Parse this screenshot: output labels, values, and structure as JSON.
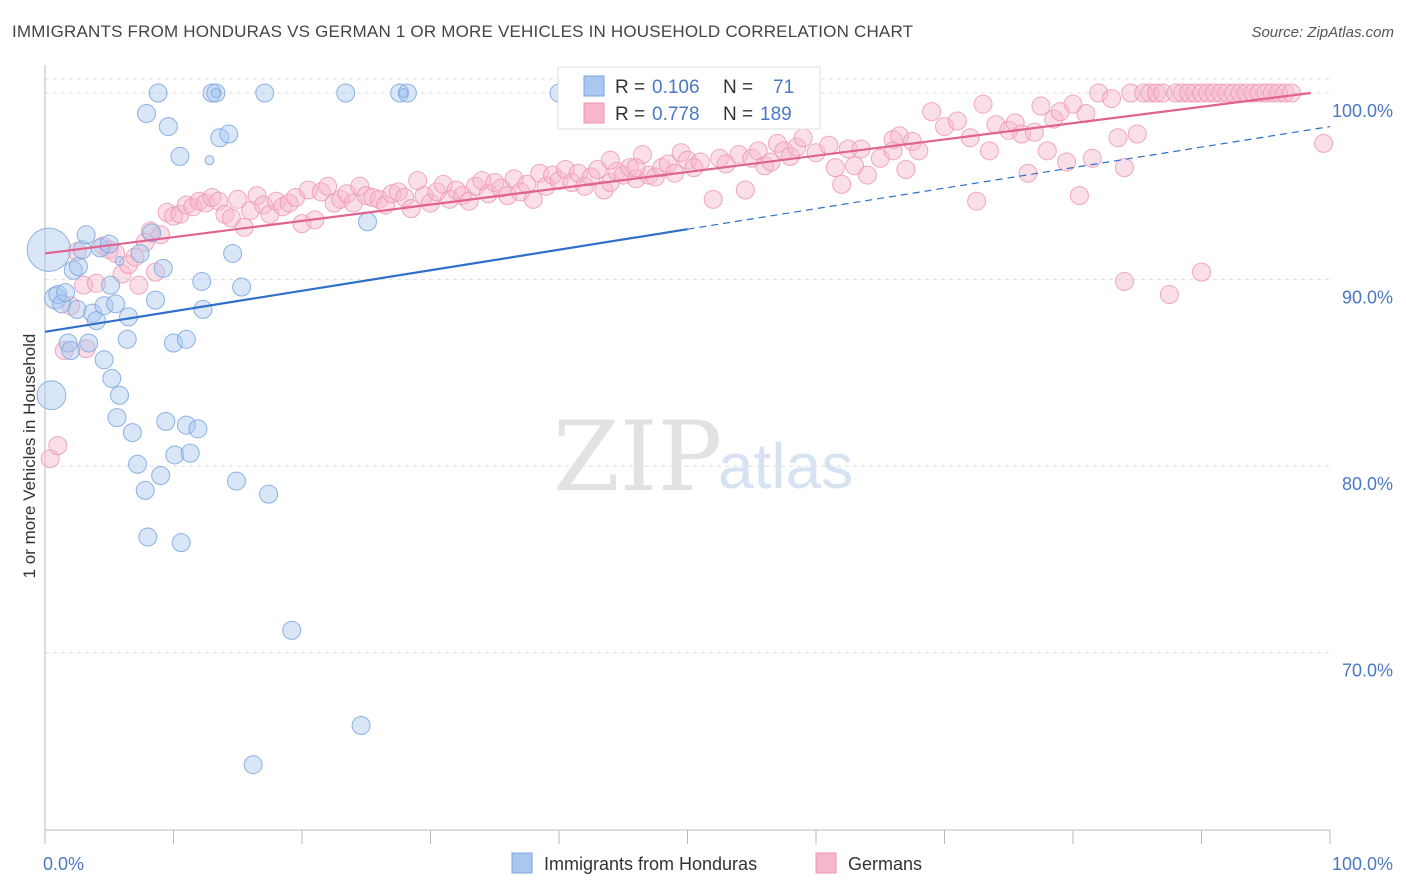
{
  "title": "IMMIGRANTS FROM HONDURAS VS GERMAN 1 OR MORE VEHICLES IN HOUSEHOLD CORRELATION CHART",
  "source": "Source: ZipAtlas.com",
  "watermark": {
    "zip": "ZIP",
    "atlas": "atlas"
  },
  "colors": {
    "blue_fill": "#a9c8f0",
    "blue_stroke": "#7aa6de",
    "blue_line": "#2f6fc9",
    "pink_fill": "#f6b7cb",
    "pink_stroke": "#ec94b2",
    "pink_line": "#e0628e",
    "grid": "#dddddd",
    "axis": "#bbbbbb",
    "tick_text": "#4a78c2"
  },
  "legend": {
    "rows": [
      {
        "r_label": "R = ",
        "r_value": "0.106",
        "n_label": "N = ",
        "n_value": "71"
      },
      {
        "r_label": "R = ",
        "r_value": "0.778",
        "n_label": "N = ",
        "n_value": "189"
      }
    ]
  },
  "chart_data": {
    "type": "scatter",
    "title": "IMMIGRANTS FROM HONDURAS VS GERMAN 1 OR MORE VEHICLES IN HOUSEHOLD CORRELATION CHART",
    "xlabel": "",
    "ylabel": "1 or more Vehicles in Household",
    "xlim": [
      0,
      100
    ],
    "ylim": [
      60.5,
      101.5
    ],
    "x_tick_labels": [
      "0.0%",
      "100.0%"
    ],
    "y_ticks": [
      {
        "value": 100,
        "label": "100.0%"
      },
      {
        "value": 90,
        "label": "90.0%"
      },
      {
        "value": 80,
        "label": "80.0%"
      },
      {
        "value": 70,
        "label": "70.0%"
      }
    ],
    "grid": true,
    "legend_placement": "top-center",
    "series": [
      {
        "name": "Immigrants from Honduras",
        "color": "#a9c8f0",
        "trend": {
          "x": [
            0,
            50
          ],
          "y": [
            87.2,
            92.7
          ],
          "extended_to": [
            100,
            98.2
          ]
        },
        "points": [
          [
            0.3,
            91.6,
            2.4
          ],
          [
            0.5,
            83.8,
            1.6
          ],
          [
            0.8,
            89.0,
            1.2
          ],
          [
            1.0,
            89.2,
            1.0
          ],
          [
            1.3,
            88.7,
            1.0
          ],
          [
            1.6,
            89.3,
            1.0
          ],
          [
            1.8,
            86.6,
            1.0
          ],
          [
            2.0,
            86.2,
            1.0
          ],
          [
            2.2,
            90.5,
            1.0
          ],
          [
            2.5,
            88.4,
            1.0
          ],
          [
            2.6,
            90.7,
            1.0
          ],
          [
            2.9,
            91.6,
            1.0
          ],
          [
            3.2,
            92.4,
            1.0
          ],
          [
            3.4,
            86.6,
            1.0
          ],
          [
            3.7,
            88.2,
            1.0
          ],
          [
            4.0,
            87.8,
            1.0
          ],
          [
            4.3,
            91.7,
            1.0
          ],
          [
            4.6,
            88.6,
            1.0
          ],
          [
            4.6,
            85.7,
            1.0
          ],
          [
            5.0,
            91.9,
            1.0
          ],
          [
            5.1,
            89.7,
            1.0
          ],
          [
            5.2,
            84.7,
            1.0
          ],
          [
            5.5,
            88.7,
            1.0
          ],
          [
            5.6,
            82.6,
            1.0
          ],
          [
            5.8,
            83.8,
            1.0
          ],
          [
            6.4,
            86.8,
            1.0
          ],
          [
            6.5,
            88.0,
            1.0
          ],
          [
            6.8,
            81.8,
            1.0
          ],
          [
            7.2,
            80.1,
            1.0
          ],
          [
            7.4,
            91.4,
            1.0
          ],
          [
            7.8,
            78.7,
            1.0
          ],
          [
            7.9,
            98.9,
            1.0
          ],
          [
            8.0,
            76.2,
            1.0
          ],
          [
            8.3,
            92.5,
            1.0
          ],
          [
            8.6,
            88.9,
            1.0
          ],
          [
            8.8,
            100.0,
            1.0
          ],
          [
            9.0,
            79.5,
            1.0
          ],
          [
            9.2,
            90.6,
            1.0
          ],
          [
            9.4,
            82.4,
            1.0
          ],
          [
            9.6,
            98.2,
            1.0
          ],
          [
            10.0,
            86.6,
            1.0
          ],
          [
            10.1,
            80.6,
            1.0
          ],
          [
            10.5,
            96.6,
            1.0
          ],
          [
            10.6,
            75.9,
            1.0
          ],
          [
            11.0,
            86.8,
            1.0
          ],
          [
            11.0,
            82.2,
            1.0
          ],
          [
            11.3,
            80.7,
            1.0
          ],
          [
            11.9,
            82.0,
            1.0
          ],
          [
            12.2,
            89.9,
            1.0
          ],
          [
            12.3,
            88.4,
            1.0
          ],
          [
            13.0,
            100.0,
            1.0
          ],
          [
            13.3,
            100.0,
            1.0
          ],
          [
            13.6,
            97.6,
            1.0
          ],
          [
            14.3,
            97.8,
            1.0
          ],
          [
            14.6,
            91.4,
            1.0
          ],
          [
            14.9,
            79.2,
            1.0
          ],
          [
            15.3,
            89.6,
            1.0
          ],
          [
            16.2,
            64.0,
            1.0
          ],
          [
            17.1,
            100.0,
            1.0
          ],
          [
            17.4,
            78.5,
            1.0
          ],
          [
            19.2,
            71.2,
            1.0
          ],
          [
            23.4,
            100.0,
            1.0
          ],
          [
            24.6,
            66.1,
            1.0
          ],
          [
            25.1,
            93.1,
            1.0
          ],
          [
            27.6,
            100.0,
            1.0
          ],
          [
            28.2,
            100.0,
            1.0
          ],
          [
            40.0,
            100.0,
            1.0
          ],
          [
            12.8,
            96.4,
            0.0
          ],
          [
            13.3,
            100.0,
            0.0
          ],
          [
            27.9,
            100.0,
            0.0
          ],
          [
            5.8,
            91.0,
            0.0
          ]
        ]
      },
      {
        "name": "Germans",
        "color": "#f6b7cb",
        "trend": {
          "x": [
            0,
            100
          ],
          "y": [
            91.4,
            100.0
          ]
        },
        "points": [
          [
            0.4,
            80.4
          ],
          [
            1.0,
            81.1
          ],
          [
            1.5,
            86.2
          ],
          [
            2.0,
            88.6
          ],
          [
            2.5,
            91.5
          ],
          [
            3.0,
            89.7
          ],
          [
            3.2,
            86.3
          ],
          [
            4.0,
            89.8
          ],
          [
            4.5,
            91.8
          ],
          [
            5.0,
            91.6
          ],
          [
            5.5,
            91.4
          ],
          [
            6.0,
            90.3
          ],
          [
            6.5,
            90.8
          ],
          [
            7.0,
            91.2
          ],
          [
            7.3,
            89.7
          ],
          [
            7.8,
            92.0
          ],
          [
            8.2,
            92.6
          ],
          [
            8.6,
            90.4
          ],
          [
            9.0,
            92.4
          ],
          [
            9.5,
            93.6
          ],
          [
            10.0,
            93.4
          ],
          [
            10.5,
            93.5
          ],
          [
            11.0,
            94.0
          ],
          [
            11.5,
            93.9
          ],
          [
            12.0,
            94.2
          ],
          [
            12.5,
            94.1
          ],
          [
            13.0,
            94.4
          ],
          [
            13.5,
            94.2
          ],
          [
            14.0,
            93.5
          ],
          [
            14.5,
            93.3
          ],
          [
            15.0,
            94.3
          ],
          [
            15.5,
            92.8
          ],
          [
            16.0,
            93.7
          ],
          [
            16.5,
            94.5
          ],
          [
            17.0,
            94.0
          ],
          [
            17.5,
            93.5
          ],
          [
            18.0,
            94.2
          ],
          [
            18.5,
            93.9
          ],
          [
            19.0,
            94.1
          ],
          [
            19.5,
            94.4
          ],
          [
            20.0,
            93.0
          ],
          [
            20.5,
            94.8
          ],
          [
            21.0,
            93.2
          ],
          [
            21.5,
            94.7
          ],
          [
            22.0,
            95.0
          ],
          [
            22.5,
            94.1
          ],
          [
            23.0,
            94.3
          ],
          [
            23.5,
            94.6
          ],
          [
            24.0,
            94.1
          ],
          [
            24.5,
            95.0
          ],
          [
            25.0,
            94.5
          ],
          [
            25.5,
            94.4
          ],
          [
            26.0,
            94.3
          ],
          [
            26.5,
            94.0
          ],
          [
            27.0,
            94.6
          ],
          [
            27.5,
            94.7
          ],
          [
            28.0,
            94.4
          ],
          [
            28.5,
            93.8
          ],
          [
            29.0,
            95.3
          ],
          [
            29.5,
            94.5
          ],
          [
            30.0,
            94.1
          ],
          [
            30.5,
            94.7
          ],
          [
            31.0,
            95.1
          ],
          [
            31.5,
            94.3
          ],
          [
            32.0,
            94.8
          ],
          [
            32.5,
            94.5
          ],
          [
            33.0,
            94.2
          ],
          [
            33.5,
            95.0
          ],
          [
            34.0,
            95.3
          ],
          [
            34.5,
            94.6
          ],
          [
            35.0,
            95.2
          ],
          [
            35.5,
            94.9
          ],
          [
            36.0,
            94.5
          ],
          [
            36.5,
            95.4
          ],
          [
            37.0,
            94.7
          ],
          [
            37.5,
            95.1
          ],
          [
            38.0,
            94.3
          ],
          [
            38.5,
            95.7
          ],
          [
            39.0,
            95.0
          ],
          [
            39.5,
            95.6
          ],
          [
            40.0,
            95.3
          ],
          [
            40.5,
            95.9
          ],
          [
            41.0,
            95.2
          ],
          [
            41.5,
            95.7
          ],
          [
            42.0,
            95.0
          ],
          [
            42.5,
            95.5
          ],
          [
            43.0,
            95.9
          ],
          [
            43.5,
            94.8
          ],
          [
            44.0,
            95.2
          ],
          [
            44.5,
            95.8
          ],
          [
            45.0,
            95.6
          ],
          [
            45.5,
            96.0
          ],
          [
            46.0,
            95.4
          ],
          [
            46.5,
            96.7
          ],
          [
            47.0,
            95.6
          ],
          [
            47.5,
            95.5
          ],
          [
            48.0,
            96.0
          ],
          [
            48.5,
            96.2
          ],
          [
            49.0,
            95.7
          ],
          [
            49.5,
            96.8
          ],
          [
            50.0,
            96.4
          ],
          [
            50.5,
            96.0
          ],
          [
            51.0,
            96.3
          ],
          [
            52.0,
            94.3
          ],
          [
            52.5,
            96.5
          ],
          [
            53.0,
            96.2
          ],
          [
            54.0,
            96.7
          ],
          [
            54.5,
            94.8
          ],
          [
            55.0,
            96.5
          ],
          [
            55.5,
            96.9
          ],
          [
            56.0,
            96.1
          ],
          [
            56.5,
            96.3
          ],
          [
            57.0,
            97.3
          ],
          [
            57.5,
            96.9
          ],
          [
            58.0,
            96.6
          ],
          [
            58.5,
            97.1
          ],
          [
            59.0,
            97.6
          ],
          [
            60.0,
            96.8
          ],
          [
            61.0,
            97.2
          ],
          [
            61.5,
            96.0
          ],
          [
            62.0,
            95.1
          ],
          [
            62.5,
            97.0
          ],
          [
            63.0,
            96.1
          ],
          [
            63.5,
            97.0
          ],
          [
            64.0,
            95.6
          ],
          [
            65.0,
            96.5
          ],
          [
            66.0,
            97.5
          ],
          [
            66.5,
            97.7
          ],
          [
            67.0,
            95.9
          ],
          [
            67.5,
            97.4
          ],
          [
            68.0,
            96.9
          ],
          [
            69.0,
            99.0
          ],
          [
            70.0,
            98.2
          ],
          [
            71.0,
            98.5
          ],
          [
            72.0,
            97.6
          ],
          [
            72.5,
            94.2
          ],
          [
            73.0,
            99.4
          ],
          [
            74.0,
            98.3
          ],
          [
            75.0,
            98.0
          ],
          [
            75.5,
            98.4
          ],
          [
            76.0,
            97.8
          ],
          [
            76.5,
            95.7
          ],
          [
            77.0,
            97.9
          ],
          [
            77.5,
            99.3
          ],
          [
            78.0,
            96.9
          ],
          [
            78.5,
            98.6
          ],
          [
            79.0,
            99.0
          ],
          [
            80.0,
            99.4
          ],
          [
            80.5,
            94.5
          ],
          [
            81.0,
            98.9
          ],
          [
            81.5,
            96.5
          ],
          [
            82.0,
            100.0
          ],
          [
            83.0,
            99.7
          ],
          [
            84.0,
            96.0
          ],
          [
            84.5,
            100.0
          ],
          [
            85.0,
            97.8
          ],
          [
            85.5,
            100.0
          ],
          [
            86.0,
            100.0
          ],
          [
            86.5,
            100.0
          ],
          [
            87.0,
            100.0
          ],
          [
            87.5,
            89.2
          ],
          [
            88.0,
            100.0
          ],
          [
            88.5,
            100.0
          ],
          [
            89.0,
            100.0
          ],
          [
            89.5,
            100.0
          ],
          [
            90.0,
            100.0
          ],
          [
            90.5,
            100.0
          ],
          [
            91.0,
            100.0
          ],
          [
            91.5,
            100.0
          ],
          [
            92.0,
            100.0
          ],
          [
            92.5,
            100.0
          ],
          [
            93.0,
            100.0
          ],
          [
            93.5,
            100.0
          ],
          [
            94.0,
            100.0
          ],
          [
            94.5,
            100.0
          ],
          [
            95.0,
            100.0
          ],
          [
            95.5,
            100.0
          ],
          [
            96.0,
            100.0
          ],
          [
            96.5,
            100.0
          ],
          [
            97.0,
            100.0
          ],
          [
            83.5,
            97.6
          ],
          [
            99.5,
            97.3
          ],
          [
            90.0,
            90.4
          ],
          [
            84.0,
            89.9
          ],
          [
            79.5,
            96.3
          ],
          [
            73.5,
            96.9
          ],
          [
            66.0,
            96.9
          ],
          [
            46.0,
            96.0
          ],
          [
            44.0,
            96.4
          ]
        ]
      }
    ]
  }
}
